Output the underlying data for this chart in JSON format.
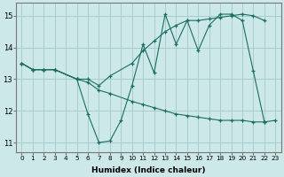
{
  "xlabel": "Humidex (Indice chaleur)",
  "ylabel": "",
  "bg_color": "#cce8e8",
  "grid_color": "#aacccc",
  "line_color": "#1a6e60",
  "xlim": [
    -0.5,
    23.5
  ],
  "ylim": [
    10.7,
    15.4
  ],
  "yticks": [
    11,
    12,
    13,
    14,
    15
  ],
  "xticks": [
    0,
    1,
    2,
    3,
    4,
    5,
    6,
    7,
    8,
    9,
    10,
    11,
    12,
    13,
    14,
    15,
    16,
    17,
    18,
    19,
    20,
    21,
    22,
    23
  ],
  "line1_x": [
    0,
    1,
    2,
    3,
    5,
    6,
    7,
    8,
    9,
    10,
    11,
    12,
    13,
    14,
    15,
    16,
    17,
    18,
    19,
    20,
    21,
    22,
    23
  ],
  "line1_y": [
    13.5,
    13.3,
    13.3,
    13.3,
    13.0,
    11.9,
    11.0,
    11.05,
    11.7,
    12.8,
    14.1,
    13.2,
    15.05,
    14.1,
    14.85,
    13.9,
    14.7,
    15.05,
    15.05,
    14.85,
    13.25,
    11.65,
    11.7
  ],
  "line2_x": [
    0,
    1,
    2,
    3,
    5,
    6,
    7,
    8,
    10,
    11,
    12,
    13,
    14,
    15,
    16,
    17,
    18,
    19,
    20,
    21,
    22
  ],
  "line2_y": [
    13.5,
    13.3,
    13.3,
    13.3,
    13.0,
    12.9,
    12.65,
    12.55,
    12.3,
    12.2,
    12.1,
    12.0,
    11.9,
    11.85,
    11.8,
    11.75,
    11.7,
    11.7,
    11.7,
    11.65,
    11.65
  ],
  "line3_x": [
    0,
    1,
    2,
    3,
    5,
    6,
    7,
    8,
    10,
    11,
    12,
    13,
    14,
    15,
    16,
    17,
    18,
    19,
    20,
    21,
    22
  ],
  "line3_y": [
    13.5,
    13.3,
    13.3,
    13.3,
    13.0,
    13.0,
    12.8,
    13.1,
    13.5,
    13.9,
    14.2,
    14.5,
    14.7,
    14.85,
    14.85,
    14.9,
    14.95,
    15.0,
    15.05,
    15.0,
    14.85
  ]
}
